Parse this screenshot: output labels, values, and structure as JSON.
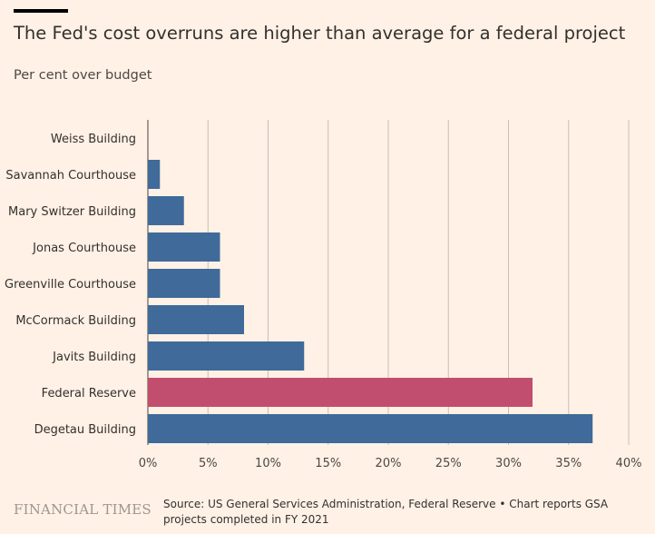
{
  "header": {
    "title": "The Fed's cost overruns are higher than average for a federal project",
    "subtitle": "Per cent over budget"
  },
  "footer": {
    "brand": "FINANCIAL TIMES",
    "source": "Source: US General Services Administration, Federal Reserve • Chart reports GSA projects completed in FY 2021"
  },
  "colors": {
    "background": "#fff1e5",
    "bar_default": "#3f6a9a",
    "bar_highlight": "#c14e6e",
    "gridline": "#c8bfb8"
  },
  "chart_data": {
    "type": "bar",
    "orientation": "horizontal",
    "categories": [
      "Weiss Building",
      "Savannah Courthouse",
      "Mary Switzer Building",
      "Jonas Courthouse",
      "Greenville Courthouse",
      "McCormack Building",
      "Javits Building",
      "Federal Reserve",
      "Degetau Building"
    ],
    "values": [
      0,
      1,
      3,
      6,
      6,
      8,
      13,
      32,
      37
    ],
    "highlight": "Federal Reserve",
    "xlim": [
      0,
      40
    ],
    "xticks": [
      0,
      5,
      10,
      15,
      20,
      25,
      30,
      35,
      40
    ],
    "xtick_labels": [
      "0%",
      "5%",
      "10%",
      "15%",
      "20%",
      "25%",
      "30%",
      "35%",
      "40%"
    ],
    "grid": "vertical"
  }
}
